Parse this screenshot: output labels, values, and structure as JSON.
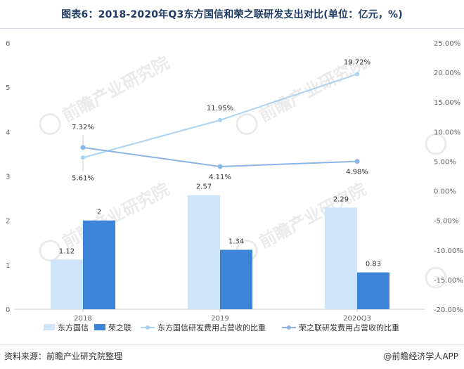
{
  "title": "图表6：2018-2020年Q3东方国信和荣之联研发支出对比(单位：亿元，%)",
  "source": "资料来源：前瞻产业研究院整理",
  "brand": "@前瞻经济学人APP",
  "watermark": "前瞻产业研究院",
  "colors": {
    "bar_dongfang": "#cfe3fb",
    "bar_rongzhilian": "#3d85d8",
    "line_dongfang": "#a9d3f2",
    "line_rongzhilian": "#8ab4e6",
    "axis_text": "#666666",
    "title": "#1f3b63"
  },
  "chart_data": {
    "type": "bar",
    "categories": [
      "2018",
      "2019",
      "2020Q3"
    ],
    "series": [
      {
        "name": "东方国信",
        "type": "bar",
        "axis": "left",
        "values": [
          1.12,
          2.57,
          2.29
        ],
        "labels": [
          "1.12",
          "2.57",
          "2.29"
        ]
      },
      {
        "name": "荣之联",
        "type": "bar",
        "axis": "left",
        "values": [
          2,
          1.34,
          0.83
        ],
        "labels": [
          "2",
          "1.34",
          "0.83"
        ]
      },
      {
        "name": "东方国信研发费用占营收的比重",
        "type": "line",
        "axis": "right",
        "values": [
          5.61,
          11.95,
          19.72
        ],
        "labels": [
          "5.61%",
          "11.95%",
          "19.72%"
        ]
      },
      {
        "name": "荣之联研发费用占营收的比重",
        "type": "line",
        "axis": "right",
        "values": [
          7.32,
          4.11,
          4.98
        ],
        "labels": [
          "7.32%",
          "4.11%",
          "4.98%"
        ]
      }
    ],
    "left_axis": {
      "min": 0,
      "max": 6,
      "ticks": [
        "0",
        "1",
        "2",
        "3",
        "4",
        "5",
        "6"
      ]
    },
    "right_axis": {
      "min": -20,
      "max": 25,
      "ticks": [
        "-20.00%",
        "-15.00%",
        "-10.00%",
        "-5.00%",
        "0.00%",
        "5.00%",
        "10.00%",
        "15.00%",
        "20.00%",
        "25.00%"
      ]
    },
    "legend_position": "bottom",
    "grid": false
  }
}
